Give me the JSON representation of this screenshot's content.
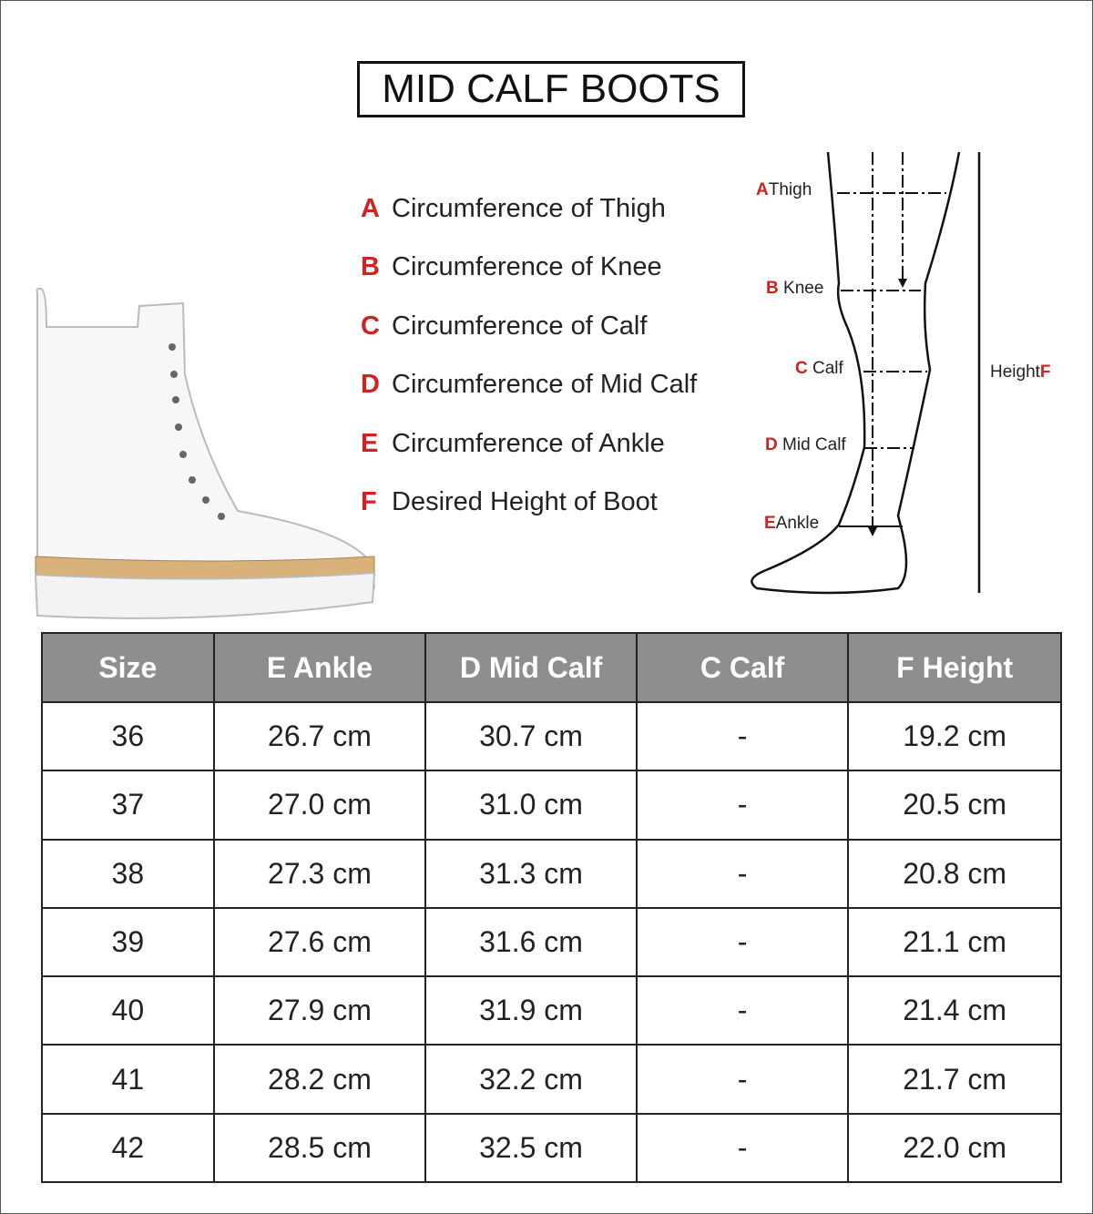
{
  "title": "MID CALF BOOTS",
  "legend": [
    {
      "letter": "A",
      "text": "Circumference of Thigh"
    },
    {
      "letter": "B",
      "text": "Circumference of Knee"
    },
    {
      "letter": "C",
      "text": "Circumference of Calf"
    },
    {
      "letter": "D",
      "text": "Circumference of Mid Calf"
    },
    {
      "letter": "E",
      "text": "Circumference of Ankle"
    },
    {
      "letter": "F",
      "text": "Desired Height of Boot"
    }
  ],
  "diagram": {
    "thigh": {
      "letter": "A",
      "text": "Thigh"
    },
    "knee": {
      "letter": "B",
      "text": "Knee"
    },
    "calf": {
      "letter": "C",
      "text": "Calf"
    },
    "mid_calf": {
      "letter": "D",
      "text": "Mid Calf"
    },
    "ankle": {
      "letter": "E",
      "text": "Ankle"
    },
    "height": {
      "letter": "F",
      "text": "Height"
    }
  },
  "colors": {
    "accent": "#d32020",
    "header_bg": "#8e8e8e"
  },
  "table": {
    "headers": [
      "Size",
      "E Ankle",
      "D Mid Calf",
      "C Calf",
      "F Height"
    ],
    "rows": [
      [
        "36",
        "26.7 cm",
        "30.7 cm",
        "-",
        "19.2 cm"
      ],
      [
        "37",
        "27.0 cm",
        "31.0 cm",
        "-",
        "20.5 cm"
      ],
      [
        "38",
        "27.3 cm",
        "31.3 cm",
        "-",
        "20.8 cm"
      ],
      [
        "39",
        "27.6 cm",
        "31.6 cm",
        "-",
        "21.1 cm"
      ],
      [
        "40",
        "27.9 cm",
        "31.9 cm",
        "-",
        "21.4 cm"
      ],
      [
        "41",
        "28.2 cm",
        "32.2 cm",
        "-",
        "21.7 cm"
      ],
      [
        "42",
        "28.5 cm",
        "32.5 cm",
        "-",
        "22.0 cm"
      ]
    ]
  }
}
